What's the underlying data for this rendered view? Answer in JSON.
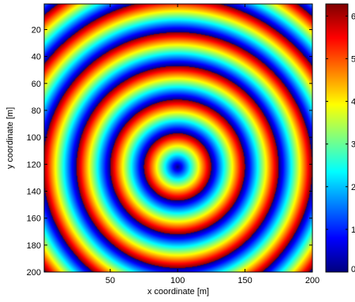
{
  "chart_data": {
    "type": "heatmap",
    "title": "",
    "xlabel": "x coordinate [m]",
    "ylabel": "y coordinate [m]",
    "xlim": [
      1,
      200
    ],
    "ylim": [
      200,
      1
    ],
    "x_ticks": [
      50,
      100,
      150,
      200
    ],
    "y_ticks": [
      20,
      40,
      60,
      80,
      100,
      120,
      140,
      160,
      180,
      200
    ],
    "colormap": "jet",
    "clim": [
      0,
      6.2832
    ],
    "colorbar_ticks": [
      0,
      1,
      2,
      3,
      4,
      5,
      6
    ],
    "colorbar_tick_labels": [
      "0",
      "1",
      "2",
      "3",
      "4",
      "5",
      "6"
    ],
    "pattern": "concentric phase rings",
    "source": {
      "x": 100,
      "y": 122
    },
    "ring_spacing": 25,
    "value_at_source": 0
  }
}
